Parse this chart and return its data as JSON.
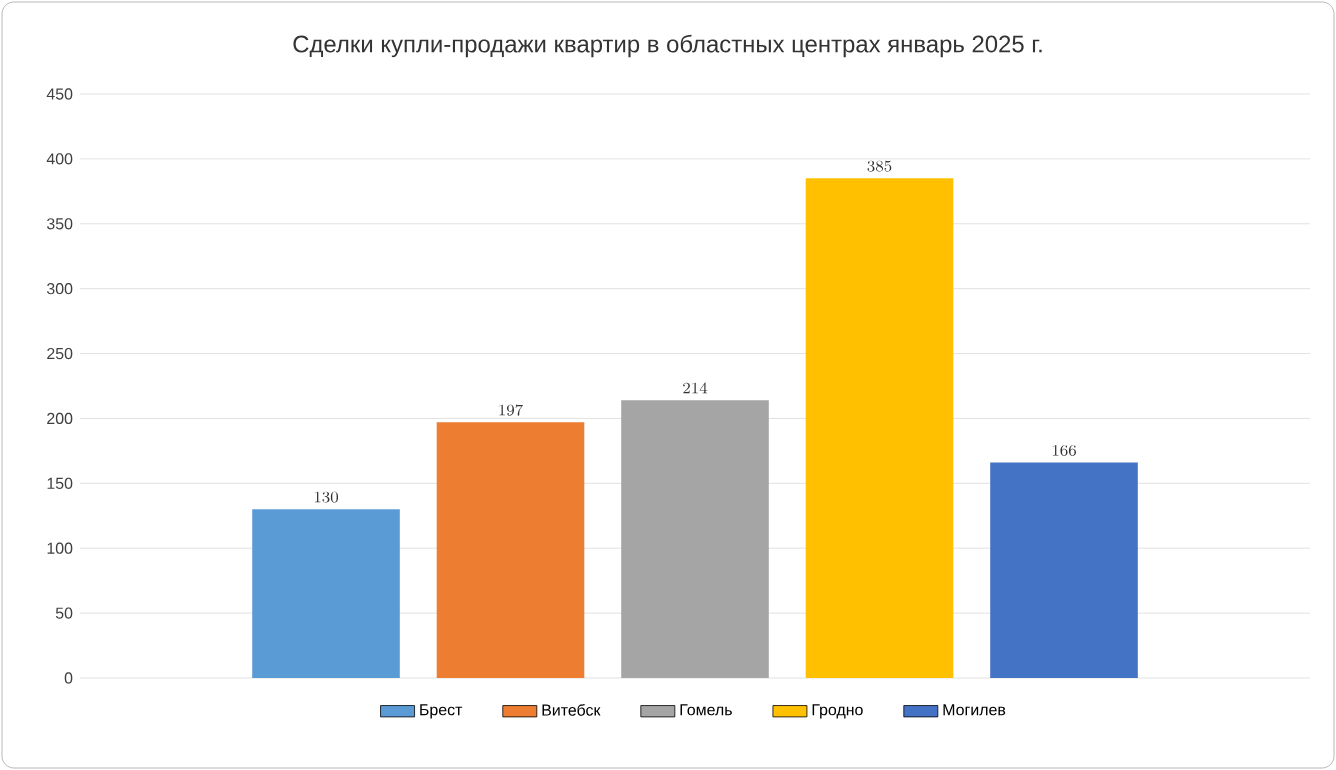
{
  "chart_data": {
    "type": "bar",
    "title": "Сделки купли-продажи квартир в областных центрах январь 2025 г.",
    "categories": [
      null
    ],
    "series": [
      {
        "name": "Брест",
        "color": "#5b9bd5",
        "values": [
          130
        ]
      },
      {
        "name": "Витебск",
        "color": "#ed7d31",
        "values": [
          197
        ]
      },
      {
        "name": "Гомель",
        "color": "#a5a5a5",
        "values": [
          214
        ]
      },
      {
        "name": "Гродно",
        "color": "#ffc000",
        "values": [
          385
        ]
      },
      {
        "name": "Могилев",
        "color": "#4472c4",
        "values": [
          166
        ]
      }
    ],
    "ylim": [
      0,
      450
    ],
    "yticks": [
      0,
      50,
      100,
      150,
      200,
      250,
      300,
      350,
      400,
      450
    ],
    "grid": "y",
    "legend": "bottom",
    "data_labels": true
  }
}
